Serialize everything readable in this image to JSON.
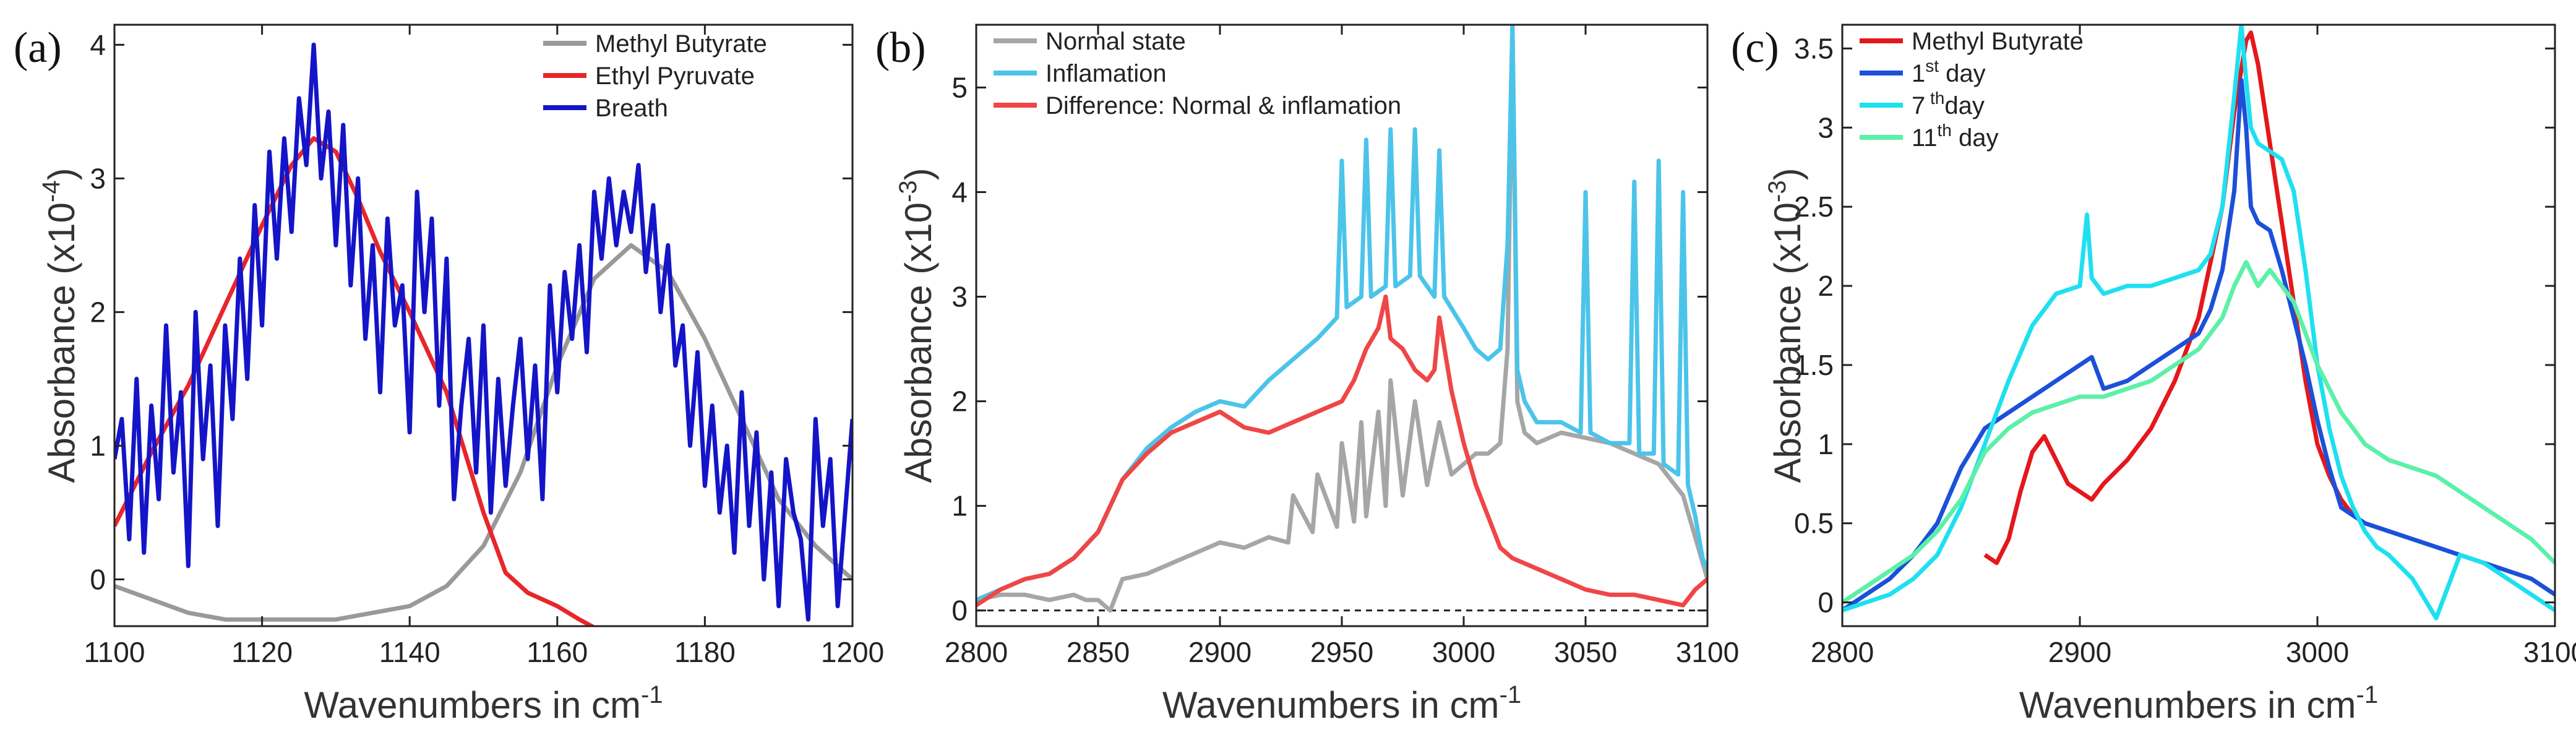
{
  "figure": {
    "description_free": true
  },
  "chart_data": [
    {
      "panel": "(a)",
      "type": "line",
      "title": "",
      "xlabel": "Wavenumbers in cm",
      "xlabel_sup": "-1",
      "ylabel": "Absorbance (x10",
      "ylabel_sup": "-4",
      "ylabel_tail": ")",
      "xlim": [
        1100,
        1200
      ],
      "ylim": [
        -0.35,
        4.15
      ],
      "xticks": [
        "1100",
        "1120",
        "1140",
        "1160",
        "1180",
        "1200"
      ],
      "xtick_values": [
        1100,
        1120,
        1140,
        1160,
        1180,
        1200
      ],
      "yticks": [
        "0",
        "1",
        "2",
        "3",
        "4"
      ],
      "ytick_values": [
        0,
        1,
        2,
        3,
        4
      ],
      "legend_position": "top-right",
      "series": [
        {
          "name": "Methyl Butyrate",
          "color": "#999999",
          "x": [
            1100,
            1105,
            1110,
            1115,
            1120,
            1125,
            1130,
            1135,
            1140,
            1145,
            1150,
            1155,
            1160,
            1165,
            1170,
            1175,
            1180,
            1185,
            1190,
            1195,
            1200
          ],
          "y": [
            -0.05,
            -0.15,
            -0.25,
            -0.3,
            -0.3,
            -0.3,
            -0.3,
            -0.25,
            -0.2,
            -0.05,
            0.25,
            0.8,
            1.6,
            2.25,
            2.5,
            2.3,
            1.8,
            1.2,
            0.6,
            0.25,
            0.0
          ]
        },
        {
          "name": "Ethyl Pyruvate",
          "color": "#e8262a",
          "x": [
            1100,
            1105,
            1110,
            1115,
            1120,
            1124,
            1127,
            1130,
            1133,
            1136,
            1140,
            1145,
            1150,
            1153,
            1156,
            1160,
            1163,
            1165,
            1166
          ],
          "y": [
            0.4,
            0.95,
            1.45,
            2.05,
            2.65,
            3.1,
            3.3,
            3.2,
            2.85,
            2.45,
            2.0,
            1.4,
            0.5,
            0.05,
            -0.1,
            -0.2,
            -0.3,
            -0.36,
            -0.4
          ]
        },
        {
          "name": "Breath",
          "color": "#1414c8",
          "x": [
            1100,
            1101,
            1102,
            1103,
            1104,
            1105,
            1106,
            1107,
            1108,
            1109,
            1110,
            1111,
            1112,
            1113,
            1114,
            1115,
            1116,
            1117,
            1118,
            1119,
            1120,
            1121,
            1122,
            1123,
            1124,
            1125,
            1126,
            1127,
            1128,
            1129,
            1130,
            1131,
            1132,
            1133,
            1134,
            1135,
            1136,
            1137,
            1138,
            1139,
            1140,
            1141,
            1142,
            1143,
            1144,
            1145,
            1146,
            1147,
            1148,
            1149,
            1150,
            1151,
            1152,
            1153,
            1154,
            1155,
            1156,
            1157,
            1158,
            1159,
            1160,
            1161,
            1162,
            1163,
            1164,
            1165,
            1166,
            1167,
            1168,
            1169,
            1170,
            1171,
            1172,
            1173,
            1174,
            1175,
            1176,
            1177,
            1178,
            1179,
            1180,
            1181,
            1182,
            1183,
            1184,
            1185,
            1186,
            1187,
            1188,
            1189,
            1190,
            1191,
            1192,
            1193,
            1194,
            1195,
            1196,
            1197,
            1198,
            1199,
            1200
          ],
          "y": [
            0.9,
            1.2,
            0.3,
            1.5,
            0.2,
            1.3,
            0.6,
            1.9,
            0.8,
            1.4,
            0.1,
            2.0,
            0.9,
            1.6,
            0.4,
            1.9,
            1.2,
            2.4,
            1.5,
            2.8,
            1.9,
            3.2,
            2.4,
            3.3,
            2.6,
            3.6,
            3.1,
            4.0,
            3.0,
            3.5,
            2.5,
            3.4,
            2.2,
            3.0,
            1.8,
            2.5,
            1.4,
            2.7,
            1.9,
            2.2,
            1.1,
            2.9,
            2.0,
            2.7,
            1.3,
            2.4,
            0.6,
            1.3,
            1.8,
            0.8,
            1.9,
            0.5,
            1.5,
            0.7,
            1.3,
            1.8,
            0.9,
            1.6,
            0.6,
            2.2,
            1.4,
            2.3,
            1.8,
            2.5,
            1.7,
            2.9,
            2.4,
            3.0,
            2.5,
            2.9,
            2.6,
            3.1,
            2.3,
            2.8,
            2.0,
            2.5,
            1.6,
            1.9,
            1.0,
            1.7,
            0.7,
            1.3,
            0.5,
            1.0,
            0.2,
            1.4,
            0.4,
            1.1,
            0.0,
            0.8,
            -0.2,
            0.9,
            0.5,
            0.3,
            -0.3,
            1.2,
            0.4,
            0.9,
            -0.2,
            0.5,
            1.2
          ]
        }
      ]
    },
    {
      "panel": "(b)",
      "type": "line",
      "title": "",
      "xlabel": "Wavenumbers in cm",
      "xlabel_sup": "-1",
      "ylabel": "Absorbance (x10",
      "ylabel_sup": "-3",
      "ylabel_tail": ")",
      "xlim": [
        2800,
        3100
      ],
      "ylim": [
        -0.15,
        5.6
      ],
      "xticks": [
        "2800",
        "2850",
        "2900",
        "2950",
        "3000",
        "3050",
        "3100"
      ],
      "xtick_values": [
        2800,
        2850,
        2900,
        2950,
        3000,
        3050,
        3100
      ],
      "yticks": [
        "0",
        "1",
        "2",
        "3",
        "4",
        "5"
      ],
      "ytick_values": [
        0,
        1,
        2,
        3,
        4,
        5
      ],
      "zero_line": true,
      "legend_position": "top-left",
      "series": [
        {
          "name": "Normal state",
          "color": "#a6a6a6",
          "x": [
            2800,
            2810,
            2820,
            2830,
            2840,
            2845,
            2850,
            2855,
            2860,
            2870,
            2880,
            2890,
            2900,
            2910,
            2920,
            2928,
            2930,
            2938,
            2940,
            2948,
            2950,
            2955,
            2958,
            2960,
            2965,
            2968,
            2970,
            2975,
            2980,
            2985,
            2990,
            2995,
            3000,
            3005,
            3010,
            3015,
            3018,
            3020,
            3022,
            3025,
            3030,
            3040,
            3050,
            3060,
            3070,
            3080,
            3090,
            3095,
            3100
          ],
          "y": [
            0.1,
            0.15,
            0.15,
            0.1,
            0.15,
            0.1,
            0.1,
            0.0,
            0.3,
            0.35,
            0.45,
            0.55,
            0.65,
            0.6,
            0.7,
            0.65,
            1.1,
            0.75,
            1.3,
            0.8,
            1.6,
            0.85,
            1.8,
            0.9,
            1.9,
            1.0,
            2.2,
            1.1,
            2.0,
            1.2,
            1.8,
            1.3,
            1.4,
            1.5,
            1.5,
            1.6,
            2.5,
            5.6,
            2.0,
            1.7,
            1.6,
            1.7,
            1.65,
            1.6,
            1.5,
            1.4,
            1.1,
            0.7,
            0.3
          ]
        },
        {
          "name": "Inflamation",
          "color": "#4cc4ea",
          "x": [
            2800,
            2810,
            2820,
            2830,
            2840,
            2850,
            2860,
            2870,
            2880,
            2890,
            2900,
            2910,
            2920,
            2930,
            2940,
            2948,
            2950,
            2952,
            2958,
            2960,
            2962,
            2968,
            2970,
            2972,
            2978,
            2980,
            2982,
            2988,
            2990,
            2992,
            3000,
            3005,
            3010,
            3015,
            3018,
            3020,
            3022,
            3025,
            3030,
            3040,
            3048,
            3050,
            3052,
            3060,
            3068,
            3070,
            3072,
            3078,
            3080,
            3082,
            3088,
            3090,
            3092,
            3095,
            3098,
            3100
          ],
          "y": [
            0.1,
            0.2,
            0.3,
            0.35,
            0.5,
            0.75,
            1.25,
            1.55,
            1.75,
            1.9,
            2.0,
            1.95,
            2.2,
            2.4,
            2.6,
            2.8,
            4.3,
            2.9,
            3.0,
            4.5,
            3.0,
            3.1,
            4.6,
            3.1,
            3.2,
            4.6,
            3.2,
            3.0,
            4.4,
            3.0,
            2.7,
            2.5,
            2.4,
            2.5,
            3.5,
            5.6,
            2.3,
            2.0,
            1.8,
            1.8,
            1.7,
            4.0,
            1.7,
            1.6,
            1.6,
            4.1,
            1.5,
            1.5,
            4.3,
            1.4,
            1.3,
            4.0,
            1.2,
            0.9,
            0.5,
            0.4
          ]
        },
        {
          "name": "Difference: Normal & inflamation",
          "color": "#ef4646",
          "x": [
            2800,
            2810,
            2820,
            2830,
            2840,
            2850,
            2860,
            2870,
            2880,
            2890,
            2900,
            2910,
            2920,
            2930,
            2940,
            2950,
            2955,
            2960,
            2965,
            2968,
            2970,
            2975,
            2980,
            2985,
            2988,
            2990,
            2995,
            3000,
            3005,
            3010,
            3015,
            3020,
            3030,
            3040,
            3050,
            3060,
            3070,
            3080,
            3090,
            3095,
            3100
          ],
          "y": [
            0.05,
            0.2,
            0.3,
            0.35,
            0.5,
            0.75,
            1.25,
            1.5,
            1.7,
            1.8,
            1.9,
            1.75,
            1.7,
            1.8,
            1.9,
            2.0,
            2.2,
            2.5,
            2.7,
            3.0,
            2.6,
            2.5,
            2.3,
            2.2,
            2.3,
            2.8,
            2.1,
            1.6,
            1.2,
            0.9,
            0.6,
            0.5,
            0.4,
            0.3,
            0.2,
            0.15,
            0.15,
            0.1,
            0.05,
            0.2,
            0.3
          ]
        }
      ]
    },
    {
      "panel": "(c)",
      "type": "line",
      "title": "",
      "xlabel": "Wavenumbers in cm",
      "xlabel_sup": "-1",
      "ylabel": "Absorbance (x10",
      "ylabel_sup": "-3",
      "ylabel_tail": ")",
      "xlim": [
        2800,
        3100
      ],
      "ylim": [
        -0.15,
        3.65
      ],
      "xticks": [
        "2800",
        "2900",
        "3000",
        "3100"
      ],
      "xtick_values": [
        2800,
        2900,
        3000,
        3100
      ],
      "yticks": [
        "0",
        "0.5",
        "1",
        "1.5",
        "2",
        "2.5",
        "3",
        "3.5"
      ],
      "ytick_values": [
        0,
        0.5,
        1,
        1.5,
        2,
        2.5,
        3,
        3.5
      ],
      "legend_position": "top-left",
      "legend_entries": [
        {
          "text": "Methyl Butyrate",
          "sup": "",
          "tail": ""
        },
        {
          "text": "1",
          "sup": "st",
          "tail": " day"
        },
        {
          "text": "7",
          "sup": " th",
          "tail": "day"
        },
        {
          "text": "11",
          "sup": "th",
          "tail": " day"
        }
      ],
      "series": [
        {
          "name": "Methyl Butyrate",
          "color": "#e4181c",
          "x": [
            2860,
            2865,
            2870,
            2875,
            2880,
            2885,
            2890,
            2895,
            2900,
            2905,
            2910,
            2920,
            2930,
            2940,
            2950,
            2960,
            2965,
            2970,
            2972,
            2975,
            2980,
            2985,
            2990,
            2995,
            3000,
            3005,
            3010,
            3015,
            3020
          ],
          "y": [
            0.3,
            0.25,
            0.4,
            0.7,
            0.95,
            1.05,
            0.9,
            0.75,
            0.7,
            0.65,
            0.75,
            0.9,
            1.1,
            1.4,
            1.8,
            2.5,
            3.1,
            3.55,
            3.6,
            3.4,
            2.9,
            2.4,
            1.9,
            1.4,
            1.0,
            0.8,
            0.65,
            0.55,
            0.5
          ]
        },
        {
          "name": "1st day",
          "color": "#1b50d8",
          "x": [
            2800,
            2810,
            2820,
            2830,
            2840,
            2850,
            2860,
            2870,
            2880,
            2890,
            2900,
            2905,
            2910,
            2920,
            2930,
            2940,
            2950,
            2955,
            2960,
            2965,
            2968,
            2970,
            2972,
            2975,
            2980,
            2985,
            2990,
            2995,
            3000,
            3005,
            3010,
            3020,
            3030,
            3040,
            3050,
            3060,
            3070,
            3080,
            3090,
            3100
          ],
          "y": [
            -0.05,
            0.05,
            0.15,
            0.3,
            0.5,
            0.85,
            1.1,
            1.2,
            1.3,
            1.4,
            1.5,
            1.55,
            1.35,
            1.4,
            1.5,
            1.6,
            1.7,
            1.85,
            2.1,
            2.6,
            3.3,
            3.0,
            2.5,
            2.4,
            2.35,
            2.1,
            1.8,
            1.5,
            1.15,
            0.85,
            0.6,
            0.5,
            0.45,
            0.4,
            0.35,
            0.3,
            0.25,
            0.2,
            0.15,
            0.05
          ]
        },
        {
          "name": "7th day",
          "color": "#1ee0f0",
          "x": [
            2800,
            2810,
            2820,
            2830,
            2840,
            2850,
            2860,
            2870,
            2880,
            2890,
            2900,
            2903,
            2905,
            2910,
            2920,
            2930,
            2940,
            2950,
            2955,
            2960,
            2965,
            2968,
            2970,
            2972,
            2975,
            2980,
            2985,
            2990,
            2995,
            3000,
            3005,
            3010,
            3015,
            3020,
            3025,
            3030,
            3040,
            3050,
            3060,
            3070,
            3080,
            3090,
            3100
          ],
          "y": [
            -0.05,
            0.0,
            0.05,
            0.15,
            0.3,
            0.6,
            1.0,
            1.4,
            1.75,
            1.95,
            2.0,
            2.45,
            2.05,
            1.95,
            2.0,
            2.0,
            2.05,
            2.1,
            2.2,
            2.5,
            3.2,
            3.65,
            3.3,
            3.0,
            2.9,
            2.85,
            2.8,
            2.6,
            2.1,
            1.5,
            1.1,
            0.8,
            0.6,
            0.45,
            0.35,
            0.3,
            0.15,
            -0.1,
            0.3,
            0.25,
            0.15,
            0.05,
            -0.05
          ]
        },
        {
          "name": "11th day",
          "color": "#5cf0a8",
          "x": [
            2800,
            2810,
            2820,
            2830,
            2840,
            2850,
            2860,
            2870,
            2880,
            2890,
            2900,
            2910,
            2920,
            2930,
            2940,
            2950,
            2960,
            2965,
            2970,
            2975,
            2980,
            2985,
            2990,
            2995,
            3000,
            3010,
            3020,
            3030,
            3040,
            3050,
            3060,
            3070,
            3080,
            3090,
            3100
          ],
          "y": [
            0.0,
            0.1,
            0.2,
            0.3,
            0.45,
            0.65,
            0.95,
            1.1,
            1.2,
            1.25,
            1.3,
            1.3,
            1.35,
            1.4,
            1.5,
            1.6,
            1.8,
            2.0,
            2.15,
            2.0,
            2.1,
            2.0,
            1.9,
            1.7,
            1.5,
            1.2,
            1.0,
            0.9,
            0.85,
            0.8,
            0.7,
            0.6,
            0.5,
            0.4,
            0.25
          ]
        }
      ]
    }
  ]
}
